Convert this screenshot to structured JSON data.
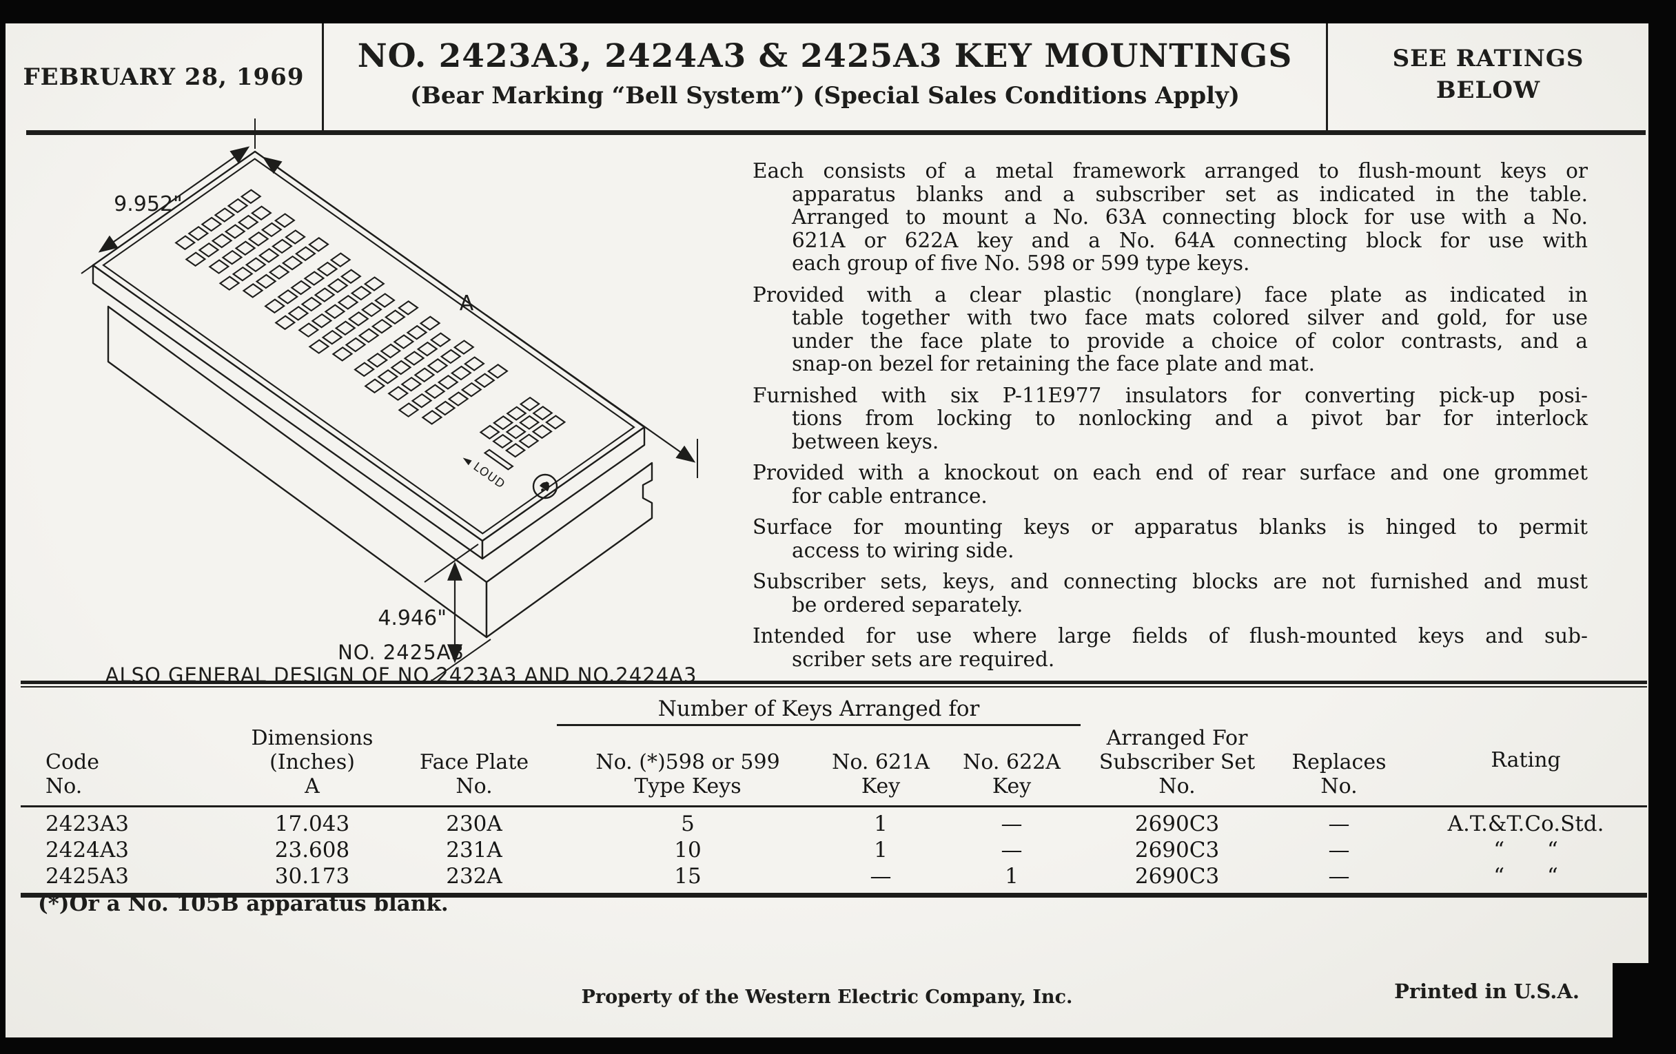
{
  "header": {
    "date": "FEBRUARY 28, 1969",
    "title": "NO. 2423A3, 2424A3 & 2425A3 KEY MOUNTINGS",
    "subtitle": "(Bear Marking “Bell System”) (Special Sales Conditions Apply)",
    "ratings_note_line1": "SEE RATINGS",
    "ratings_note_line2": "BELOW"
  },
  "diagram": {
    "width_label": "9.952\"",
    "length_label": "A",
    "height_label": "4.946\"",
    "loud_label": "◄ LOUD",
    "caption_line1": "NO. 2425A3",
    "caption_line2": "ALSO GENERAL DESIGN OF NO.2423A3 AND NO.2424A3"
  },
  "description": {
    "paragraphs": [
      [
        "Each consists of a metal framework arranged to flush-mount keys or",
        "apparatus blanks and a subscriber set as indicated in the table.",
        "Arranged to mount a No. 63A connecting block for use with a No.",
        "621A or 622A key and a No. 64A connecting block for use with",
        "each group of five No. 598 or 599 type keys."
      ],
      [
        "Provided with a clear plastic (nonglare) face plate as indicated in",
        "table together with two face mats colored silver and gold, for use",
        "under the face plate to provide a choice of color contrasts, and a",
        "snap-on bezel for retaining the face plate and mat."
      ],
      [
        "Furnished with six P-11E977 insulators for converting pick-up posi-",
        "tions from locking to nonlocking and a pivot bar for interlock",
        "between keys."
      ],
      [
        "Provided with a knockout on each end of rear surface and one grommet",
        "for cable entrance."
      ],
      [
        "Surface for mounting keys or apparatus blanks is hinged to permit",
        "access to wiring side."
      ],
      [
        "Subscriber sets, keys, and connecting blocks are not furnished and must",
        "be ordered separately."
      ],
      [
        "Intended for use where large fields of flush-mounted keys and sub-",
        "scriber sets are required."
      ]
    ]
  },
  "ratings_table": {
    "group_header": "Number of Keys Arranged for",
    "columns": {
      "code": "Code\nNo.",
      "dimensions": "Dimensions\n(Inches)\nA",
      "face_plate": "Face Plate\nNo.",
      "keys_598": "No. (*)598 or 599\nType Keys",
      "key_621a": "No. 621A\nKey",
      "key_622a": "No. 622A\nKey",
      "subscriber_set": "Arranged For\nSubscriber Set\nNo.",
      "replaces": "Replaces\nNo.",
      "rating": "Rating"
    },
    "rows": [
      {
        "code": "2423A3",
        "dimensions": "17.043",
        "face_plate": "230A",
        "keys_598": "5",
        "key_621a": "1",
        "key_622a": "—",
        "subscriber_set": "2690C3",
        "replaces": "—",
        "rating": "A.T.&T.Co.Std."
      },
      {
        "code": "2424A3",
        "dimensions": "23.608",
        "face_plate": "231A",
        "keys_598": "10",
        "key_621a": "1",
        "key_622a": "—",
        "subscriber_set": "2690C3",
        "replaces": "—",
        "rating": "“  “"
      },
      {
        "code": "2425A3",
        "dimensions": "30.173",
        "face_plate": "232A",
        "keys_598": "15",
        "key_621a": "—",
        "key_622a": "1",
        "subscriber_set": "2690C3",
        "replaces": "—",
        "rating": "“  “"
      }
    ]
  },
  "footnote": "(*)Or a No. 105B apparatus blank.",
  "footer": {
    "property_line": "Property of the Western Electric Company, Inc.",
    "printed_line": "Printed in U.S.A."
  },
  "colors": {
    "paper": "#f4f3ef",
    "ink": "#1d1d1b",
    "background": "#060606"
  }
}
